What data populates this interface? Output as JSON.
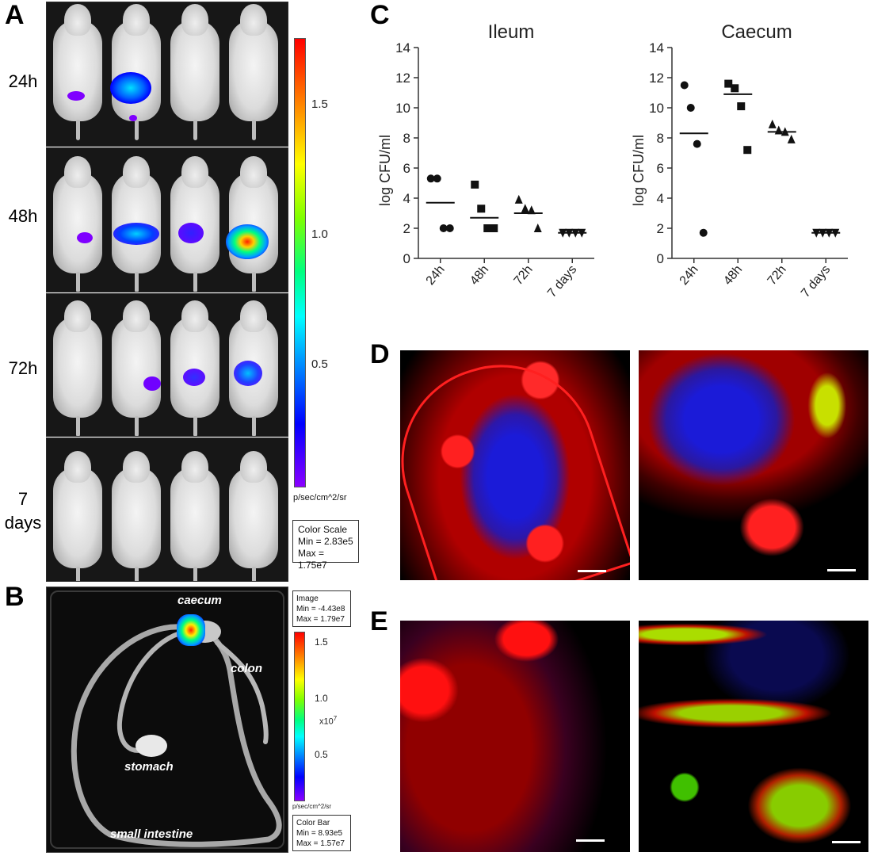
{
  "panels": {
    "a": "A",
    "b": "B",
    "c": "C",
    "d": "D",
    "e": "E"
  },
  "panel_a": {
    "time_labels": [
      "24h",
      "48h",
      "72h",
      "7\ndays"
    ],
    "colorbar": {
      "ticks": [
        "1.5",
        "1.0",
        "0.5"
      ],
      "unit": "p/sec/cm^2/sr",
      "scale_box": [
        "Color Scale",
        "Min = 2.83e5",
        "Max = 1.75e7"
      ]
    }
  },
  "panel_b": {
    "labels": {
      "caecum": "caecum",
      "colon": "colon",
      "stomach": "stomach",
      "small_intestine": "small intestine"
    },
    "image_box": [
      "Image",
      "Min = -4.43e8",
      "Max = 1.79e7"
    ],
    "colorbar": {
      "ticks": [
        "1.5",
        "1.0",
        "0.5"
      ],
      "multiplier": "x10",
      "multiplier_exp": "7",
      "unit": "p/sec/cm^2/sr",
      "bar_box": [
        "Color Bar",
        "Min = 8.93e5",
        "Max = 1.57e7"
      ]
    }
  },
  "chart_data": [
    {
      "type": "scatter",
      "title": "Ileum",
      "ylabel": "log CFU/ml",
      "categories": [
        "24h",
        "48h",
        "72h",
        "7 days"
      ],
      "ylim": [
        0,
        14
      ],
      "yticks": [
        0,
        2,
        4,
        6,
        8,
        10,
        12,
        14
      ],
      "markers": [
        "circle",
        "square",
        "triangle",
        "triangle-down"
      ],
      "points": [
        [
          5.3,
          5.3,
          2.0,
          2.0
        ],
        [
          4.9,
          3.3,
          2.0,
          2.0
        ],
        [
          3.9,
          3.3,
          3.2,
          2.0
        ],
        [
          1.7,
          1.7,
          1.7,
          1.7
        ]
      ],
      "medians": [
        3.7,
        2.7,
        3.0,
        1.7
      ]
    },
    {
      "type": "scatter",
      "title": "Caecum",
      "ylabel": "log CFU/ml",
      "categories": [
        "24h",
        "48h",
        "72h",
        "7 days"
      ],
      "ylim": [
        0,
        14
      ],
      "yticks": [
        0,
        2,
        4,
        6,
        8,
        10,
        12,
        14
      ],
      "markers": [
        "circle",
        "square",
        "triangle",
        "triangle-down"
      ],
      "points": [
        [
          11.5,
          10.0,
          7.6,
          1.7
        ],
        [
          11.6,
          11.3,
          10.1,
          7.2
        ],
        [
          8.9,
          8.5,
          8.4,
          7.9
        ],
        [
          1.7,
          1.7,
          1.7,
          1.7
        ]
      ],
      "medians": [
        8.3,
        10.9,
        8.4,
        1.7
      ]
    }
  ]
}
